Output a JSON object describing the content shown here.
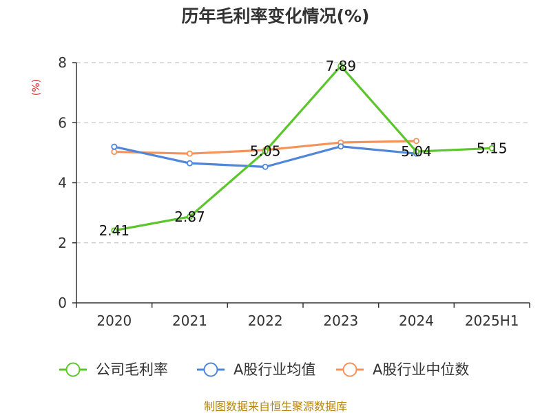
{
  "colors": {
    "gross_margin": "#5cc52c",
    "industry_mean": "#4f86d9",
    "industry_median": "#f5925a",
    "grid": "#c8c8c8",
    "axis": "#333333",
    "unit": "#e02020",
    "source": "#b8860b"
  },
  "chart_data": {
    "type": "line",
    "title": "历年毛利率变化情况(%)",
    "ylabel": "(%)",
    "xlabel": "",
    "categories": [
      "2020",
      "2021",
      "2022",
      "2023",
      "2024",
      "2025H1"
    ],
    "ylim": [
      0,
      8
    ],
    "yticks": [
      "0",
      "2",
      "4",
      "6",
      "8"
    ],
    "grid": "horizontal dashed",
    "legend_position": "bottom",
    "series": [
      {
        "name": "公司毛利率",
        "color_key": "gross_margin",
        "values": [
          2.41,
          2.87,
          5.05,
          7.89,
          5.04,
          5.15
        ],
        "labels": [
          "2.41",
          "2.87",
          "5.05",
          "7.89",
          "5.04",
          "5.15"
        ]
      },
      {
        "name": "A股行业均值",
        "color_key": "industry_mean",
        "values": [
          5.2,
          4.65,
          4.53,
          5.21,
          4.97,
          null
        ]
      },
      {
        "name": "A股行业中位数",
        "color_key": "industry_median",
        "values": [
          5.03,
          4.97,
          5.09,
          5.34,
          5.39,
          null
        ]
      }
    ]
  },
  "source_note": "制图数据来自恒生聚源数据库"
}
